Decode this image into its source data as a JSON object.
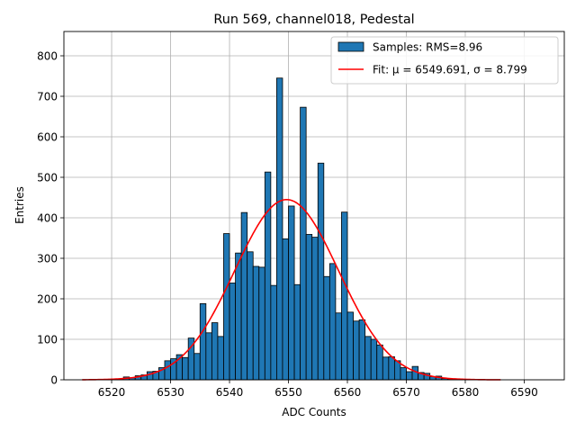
{
  "chart_data": {
    "type": "bar",
    "title": "Run 569, channel018, Pedestal",
    "xlabel": "ADC Counts",
    "ylabel": "Entries",
    "xlim": [
      6511.9,
      6596.8
    ],
    "ylim": [
      0,
      860
    ],
    "grid": true,
    "legend_position": "top-right",
    "x_ticks": [
      6520,
      6530,
      6540,
      6550,
      6560,
      6570,
      6580,
      6590
    ],
    "y_ticks": [
      0,
      100,
      200,
      300,
      400,
      500,
      600,
      700,
      800
    ],
    "bin_width": 1,
    "colors": {
      "bars": "#1f77b4",
      "edge": "#000000",
      "fit": "#ff0000"
    },
    "series": [
      {
        "name": "Samples: RMS=8.96",
        "kind": "histogram",
        "bin_starts": [
          6518,
          6519,
          6520,
          6521,
          6522,
          6523,
          6524,
          6525,
          6526,
          6527,
          6528,
          6529,
          6530,
          6531,
          6532,
          6533,
          6534,
          6535,
          6536,
          6537,
          6538,
          6539,
          6540,
          6541,
          6542,
          6543,
          6544,
          6545,
          6546,
          6547,
          6548,
          6549,
          6550,
          6551,
          6552,
          6553,
          6554,
          6555,
          6556,
          6557,
          6558,
          6559,
          6560,
          6561,
          6562,
          6563,
          6564,
          6565,
          6566,
          6567,
          6568,
          6569,
          6570,
          6571,
          6572,
          6573,
          6574,
          6575,
          6576,
          6577,
          6578,
          6579,
          6580,
          6581
        ],
        "values": [
          1,
          1,
          2,
          2,
          7,
          5,
          10,
          12,
          20,
          21,
          30,
          47,
          52,
          62,
          55,
          103,
          65,
          188,
          116,
          141,
          107,
          361,
          239,
          313,
          413,
          316,
          280,
          278,
          513,
          233,
          745,
          348,
          429,
          235,
          673,
          359,
          352,
          535,
          255,
          287,
          165,
          414,
          167,
          145,
          148,
          107,
          100,
          86,
          56,
          57,
          47,
          30,
          20,
          33,
          18,
          16,
          8,
          9,
          3,
          2,
          1,
          1,
          1,
          1
        ]
      },
      {
        "name": "Fit: μ = 6549.691, σ = 8.799",
        "kind": "gaussian_fit",
        "mu": 6549.691,
        "sigma": 8.799,
        "amplitude": 445,
        "x_range": [
          6515,
          6586
        ]
      }
    ]
  }
}
